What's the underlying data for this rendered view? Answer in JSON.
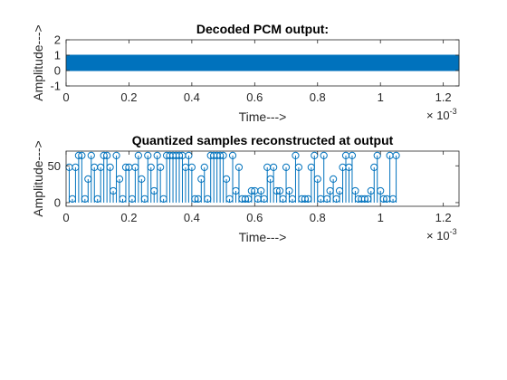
{
  "chart_data": [
    {
      "type": "line",
      "title": "Decoded PCM output:",
      "xlabel": "Time--->",
      "ylabel": "Amplitude--->",
      "xlim": [
        0,
        0.00125
      ],
      "ylim": [
        -1,
        2
      ],
      "xticks": [
        0,
        0.0002,
        0.0004,
        0.0006,
        0.0008,
        0.001,
        0.0012
      ],
      "xtick_labels": [
        "0",
        "0.2",
        "0.4",
        "0.6",
        "0.8",
        "1",
        "1.2"
      ],
      "x_multiplier_base": "× 10",
      "x_multiplier_exp": "-3",
      "yticks": [
        -1,
        0,
        1,
        2
      ],
      "ytick_labels": [
        "-1",
        "0",
        "1",
        "2"
      ],
      "color": "#0072BD",
      "step": 1.25e-06,
      "bits": "1010101010110101011010101101101010101101010110101011010101101010101101010101101010110101010101101011010101011010101011010101010101101010101011010110101010101010101010101010101010101011010101101010101010101101010101011010101101010101010101010110101010110101011011010101010110101010110101010101101010110101010110101010101101010101011010101010110101010101010110101101010101011010101010101101010101101010101010101101010101101010101010110101010110101010101101011010101011010101010101101010101101010101101010101011010101010110101010101011010101101010101010101101010101011010101010110101010101011010101101010101010101010110101010101101010101011010101010101101010101011010101010110101010110101010101011010101010110101010101010110101010110101010110101010101101010101101010101011010101010101011010101010110101010101101010101101010101010110101010101101010101101010101010110101010101101010101010101101010101011010101010110101010101101010101101010101010101101010101101010101011010101010110101010101101010101011010101010101101010101010110101010110101010101011010101010110101010101101010101011010101010101101010101011010101010110101"
    },
    {
      "type": "stem",
      "title": "Quantized samples reconstructed at output",
      "xlabel": "Time--->",
      "ylabel": "Amplitude--->",
      "xlim": [
        0,
        0.00125
      ],
      "ylim": [
        -5,
        70
      ],
      "xticks": [
        0,
        0.0002,
        0.0004,
        0.0006,
        0.0008,
        0.001,
        0.0012
      ],
      "xtick_labels": [
        "0",
        "0.2",
        "0.4",
        "0.6",
        "0.8",
        "1",
        "1.2"
      ],
      "x_multiplier_base": "× 10",
      "x_multiplier_exp": "-3",
      "yticks": [
        0,
        50
      ],
      "ytick_labels": [
        "0",
        "50"
      ],
      "color": "#0072BD",
      "x_start": 1e-05,
      "x_step": 1e-05,
      "y": [
        48,
        5,
        48,
        64,
        64,
        5,
        32,
        64,
        48,
        5,
        48,
        64,
        64,
        48,
        16,
        64,
        32,
        5,
        48,
        48,
        5,
        48,
        64,
        32,
        5,
        64,
        48,
        16,
        64,
        48,
        5,
        64,
        64,
        64,
        64,
        64,
        64,
        48,
        64,
        48,
        5,
        5,
        32,
        48,
        5,
        64,
        64,
        64,
        64,
        64,
        32,
        5,
        64,
        16,
        48,
        5,
        5,
        5,
        16,
        16,
        5,
        16,
        5,
        48,
        32,
        48,
        16,
        16,
        5,
        48,
        16,
        5,
        64,
        48,
        5,
        5,
        5,
        48,
        64,
        32,
        5,
        64,
        5,
        16,
        32,
        5,
        16,
        48,
        64,
        48,
        64,
        16,
        5,
        5,
        5,
        5,
        16,
        48,
        64,
        16,
        5,
        5,
        64,
        5,
        64
      ]
    }
  ]
}
